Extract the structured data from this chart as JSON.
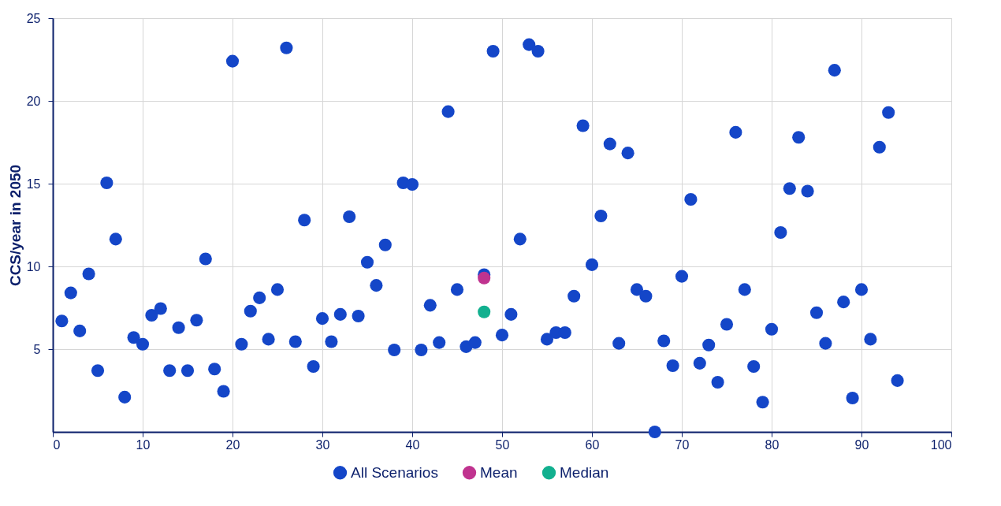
{
  "chart_data": {
    "type": "scatter",
    "ylabel": "CCS/year in 2050",
    "xlim": [
      0,
      100
    ],
    "xticks": [
      0,
      10,
      20,
      30,
      40,
      50,
      60,
      70,
      80,
      90,
      100
    ],
    "ylim": [
      0,
      25
    ],
    "yticks": [
      5,
      10,
      15,
      20,
      25
    ],
    "grid": true,
    "legend": "bottom",
    "marker": "circle",
    "series": [
      {
        "name": "All Scenarios",
        "color": "#1446c8",
        "x": [
          1,
          2,
          3,
          4,
          5,
          6,
          7,
          8,
          9,
          10,
          11,
          12,
          13,
          14,
          15,
          16,
          17,
          18,
          19,
          20,
          21,
          22,
          23,
          24,
          25,
          26,
          27,
          28,
          29,
          30,
          31,
          32,
          33,
          34,
          35,
          36,
          37,
          38,
          39,
          40,
          41,
          42,
          43,
          44,
          45,
          46,
          47,
          48,
          49,
          50,
          51,
          52,
          53,
          54,
          55,
          56,
          57,
          58,
          59,
          60,
          61,
          62,
          63,
          64,
          65,
          66,
          67,
          68,
          69,
          70,
          71,
          72,
          73,
          74,
          75,
          76,
          77,
          78,
          79,
          80,
          81,
          82,
          83,
          84,
          85,
          86,
          87,
          88,
          89,
          90,
          91,
          92,
          93,
          94
        ],
        "values": [
          6.7,
          8.4,
          6.1,
          9.55,
          3.7,
          15.05,
          11.65,
          2.1,
          5.7,
          5.3,
          7.05,
          7.45,
          3.7,
          6.3,
          3.7,
          6.75,
          10.45,
          3.8,
          2.45,
          22.4,
          5.3,
          7.3,
          8.1,
          5.6,
          8.6,
          23.2,
          5.45,
          12.8,
          3.95,
          6.85,
          5.45,
          7.1,
          13.0,
          7.0,
          10.25,
          8.85,
          11.3,
          4.95,
          15.05,
          14.95,
          4.95,
          7.65,
          5.4,
          19.35,
          8.6,
          5.15,
          5.4,
          9.5,
          23.0,
          5.85,
          7.1,
          11.65,
          23.4,
          23.0,
          5.6,
          6.0,
          6.0,
          8.2,
          18.5,
          10.1,
          13.05,
          17.4,
          5.35,
          16.85,
          8.6,
          8.2,
          0,
          5.5,
          4.0,
          9.4,
          14.05,
          4.15,
          5.25,
          3.0,
          6.5,
          18.1,
          8.6,
          3.95,
          1.8,
          6.2,
          12.05,
          14.7,
          17.8,
          14.55,
          7.2,
          5.35,
          21.85,
          7.85,
          2.05,
          8.6,
          5.6,
          17.2,
          19.3,
          3.1
        ]
      },
      {
        "name": "Mean",
        "color": "#c0338f",
        "x": [
          48
        ],
        "values": [
          9.3
        ]
      },
      {
        "name": "Median",
        "color": "#12b08f",
        "x": [
          48
        ],
        "values": [
          7.25
        ]
      }
    ]
  }
}
